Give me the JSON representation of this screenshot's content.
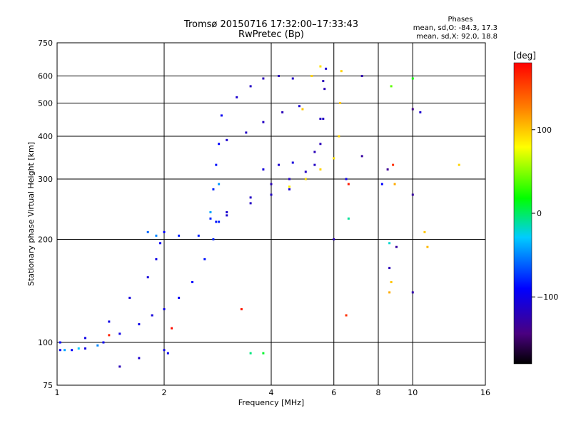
{
  "title_line1": "Tromsø 20150716 17:32:00–17:33:43",
  "title_line2": "RwPretec (Bp)",
  "stats": {
    "heading": "Phases",
    "line_o": "mean, sd,O: -84.3, 17.3",
    "line_x": "mean, sd,X:  92.0, 18.8"
  },
  "colorbar": {
    "label": "[deg]",
    "ticks": [
      {
        "value": 100,
        "label": "100"
      },
      {
        "value": 0,
        "label": "0"
      },
      {
        "value": -100,
        "label": "−100"
      }
    ]
  },
  "chart_data": {
    "type": "scatter",
    "xlabel": "Frequency [MHz]",
    "ylabel": "Stationary phase Virtual Height [km]",
    "x_scale": "log",
    "y_scale": "log",
    "xlim": [
      1,
      16
    ],
    "ylim": [
      75,
      750
    ],
    "grid": true,
    "x_ticks": [
      {
        "value": 1,
        "label": "1"
      },
      {
        "value": 2,
        "label": "2"
      },
      {
        "value": 4,
        "label": "4"
      },
      {
        "value": 6,
        "label": "6"
      },
      {
        "value": 8,
        "label": "8"
      },
      {
        "value": 10,
        "label": "10"
      },
      {
        "value": 16,
        "label": "16"
      }
    ],
    "y_ticks": [
      {
        "value": 75,
        "label": "75"
      },
      {
        "value": 100,
        "label": "100"
      },
      {
        "value": 200,
        "label": "200"
      },
      {
        "value": 300,
        "label": "300"
      },
      {
        "value": 400,
        "label": "400"
      },
      {
        "value": 500,
        "label": "500"
      },
      {
        "value": 600,
        "label": "600"
      },
      {
        "value": 750,
        "label": "750"
      }
    ],
    "colorbar_range_deg": [
      -180,
      180
    ],
    "series": [
      {
        "values": [
          [
            1.02,
            95,
            -95
          ],
          [
            1.1,
            95,
            -90
          ],
          [
            1.2,
            96,
            -100
          ],
          [
            1.35,
            100,
            -95
          ],
          [
            1.5,
            106,
            -100
          ],
          [
            1.7,
            113,
            -100
          ],
          [
            1.85,
            120,
            -105
          ],
          [
            2.0,
            125,
            -100
          ],
          [
            2.2,
            135,
            -95
          ],
          [
            2.4,
            150,
            -90
          ],
          [
            2.6,
            175,
            -85
          ],
          [
            2.75,
            200,
            -80
          ],
          [
            2.85,
            225,
            -80
          ],
          [
            3.0,
            235,
            -110
          ],
          [
            3.5,
            255,
            -115
          ],
          [
            4.0,
            270,
            -115
          ],
          [
            4.5,
            280,
            -110
          ],
          [
            5.0,
            300,
            -115
          ],
          [
            5.3,
            330,
            -115
          ],
          [
            5.5,
            380,
            -120
          ],
          [
            5.6,
            450,
            -115
          ],
          [
            5.65,
            550,
            -120
          ],
          [
            5.7,
            630,
            -110
          ]
        ]
      },
      {
        "values": [
          [
            1.02,
            100,
            -90
          ],
          [
            1.2,
            103,
            -100
          ],
          [
            1.4,
            115,
            -100
          ],
          [
            1.6,
            135,
            -105
          ],
          [
            1.8,
            155,
            -105
          ],
          [
            1.9,
            175,
            -100
          ],
          [
            1.95,
            195,
            -95
          ],
          [
            2.0,
            210,
            -90
          ],
          [
            2.2,
            205,
            -80
          ],
          [
            2.5,
            205,
            -80
          ],
          [
            2.8,
            225,
            -85
          ],
          [
            3.0,
            240,
            -110
          ],
          [
            3.5,
            265,
            -115
          ],
          [
            4.0,
            290,
            -120
          ],
          [
            4.5,
            300,
            -115
          ],
          [
            5.0,
            315,
            -115
          ],
          [
            5.3,
            360,
            -120
          ],
          [
            5.5,
            450,
            -115
          ],
          [
            5.6,
            580,
            -120
          ]
        ]
      },
      {
        "values": [
          [
            2.7,
            230,
            -80
          ],
          [
            2.75,
            280,
            -80
          ],
          [
            2.8,
            330,
            -85
          ],
          [
            2.85,
            380,
            -90
          ],
          [
            2.9,
            460,
            -95
          ],
          [
            3.2,
            520,
            -110
          ],
          [
            3.5,
            560,
            -115
          ],
          [
            3.8,
            590,
            -120
          ],
          [
            4.2,
            600,
            -120
          ],
          [
            4.6,
            590,
            -115
          ]
        ]
      },
      {
        "values": [
          [
            3.0,
            390,
            -110
          ],
          [
            3.4,
            410,
            -115
          ],
          [
            3.8,
            440,
            -115
          ],
          [
            4.3,
            470,
            -120
          ],
          [
            4.8,
            490,
            -110
          ]
        ]
      },
      {
        "values": [
          [
            3.8,
            320,
            -105
          ],
          [
            4.2,
            330,
            -110
          ],
          [
            4.6,
            335,
            -105
          ]
        ]
      },
      {
        "values": [
          [
            4.5,
            285,
            85
          ],
          [
            5.0,
            300,
            90
          ],
          [
            5.5,
            320,
            95
          ],
          [
            6.0,
            345,
            90
          ],
          [
            6.2,
            400,
            95
          ],
          [
            6.25,
            500,
            100
          ],
          [
            6.3,
            620,
            95
          ]
        ]
      },
      {
        "values": [
          [
            4.9,
            480,
            100
          ],
          [
            5.2,
            600,
            95
          ],
          [
            5.5,
            640,
            90
          ]
        ]
      },
      {
        "values": [
          [
            1.05,
            95,
            -40
          ],
          [
            1.15,
            96,
            -30
          ],
          [
            1.3,
            98,
            -50
          ],
          [
            1.8,
            210,
            -60
          ],
          [
            1.9,
            205,
            -50
          ],
          [
            2.7,
            240,
            -40
          ],
          [
            2.85,
            290,
            -45
          ],
          [
            3.5,
            93,
            -5
          ],
          [
            3.8,
            93,
            10
          ]
        ]
      },
      {
        "values": [
          [
            1.5,
            85,
            -120
          ],
          [
            1.7,
            90,
            -110
          ],
          [
            2.0,
            95,
            -100
          ],
          [
            2.05,
            93,
            -95
          ]
        ]
      },
      {
        "values": [
          [
            7.2,
            350,
            -130
          ],
          [
            7.2,
            600,
            -125
          ],
          [
            8.5,
            320,
            -135
          ],
          [
            9.0,
            190,
            -130
          ],
          [
            8.6,
            165,
            -120
          ],
          [
            10.0,
            480,
            -140
          ],
          [
            10.0,
            270,
            -130
          ],
          [
            10.0,
            140,
            -125
          ],
          [
            10.5,
            470,
            -110
          ],
          [
            6.5,
            300,
            -100
          ],
          [
            6.0,
            200,
            -120
          ],
          [
            8.2,
            290,
            -90
          ]
        ]
      },
      {
        "values": [
          [
            6.5,
            120,
            160
          ],
          [
            6.6,
            290,
            170
          ],
          [
            8.7,
            560,
            40
          ],
          [
            8.8,
            330,
            160
          ],
          [
            3.3,
            125,
            170
          ],
          [
            2.1,
            110,
            175
          ],
          [
            8.9,
            290,
            110
          ],
          [
            10.8,
            210,
            100
          ],
          [
            11.0,
            190,
            105
          ],
          [
            13.5,
            330,
            95
          ],
          [
            8.7,
            150,
            100
          ],
          [
            8.6,
            140,
            110
          ],
          [
            1.4,
            105,
            165
          ],
          [
            6.6,
            230,
            -10
          ],
          [
            8.6,
            195,
            -20
          ],
          [
            10.0,
            590,
            20
          ]
        ]
      }
    ]
  }
}
